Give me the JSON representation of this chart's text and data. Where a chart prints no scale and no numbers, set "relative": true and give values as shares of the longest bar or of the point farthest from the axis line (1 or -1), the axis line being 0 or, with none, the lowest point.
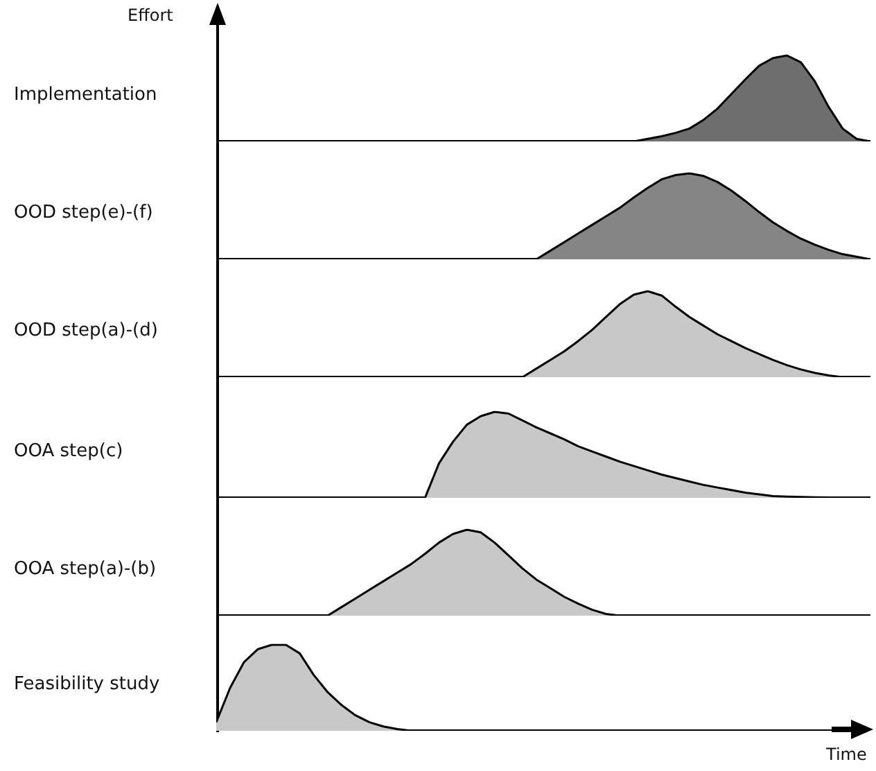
{
  "chart_data": [
    {
      "type": "area",
      "title": "Implementation",
      "ylabel": "Effort",
      "relative": true,
      "tick_labels": false,
      "legend": false,
      "categories": [
        null,
        null,
        null,
        null,
        null,
        null,
        null,
        null,
        null,
        null,
        null,
        null,
        null,
        null,
        null,
        null,
        null,
        null,
        null,
        null,
        null,
        null,
        null,
        null,
        null,
        null,
        null,
        null,
        null,
        null,
        null,
        null,
        null,
        null,
        null,
        null,
        null,
        null,
        null,
        null,
        null,
        null,
        null,
        null,
        null,
        null,
        null,
        null
      ],
      "series": [
        {
          "color": "#6e6e6e",
          "values": [
            null,
            null,
            null,
            null,
            null,
            null,
            null,
            null,
            null,
            null,
            null,
            null,
            null,
            null,
            null,
            null,
            null,
            null,
            null,
            null,
            null,
            null,
            null,
            null,
            null,
            null,
            null,
            null,
            null,
            null,
            0,
            0.03,
            0.06,
            0.1,
            0.15,
            0.25,
            0.38,
            0.55,
            0.72,
            0.88,
            0.97,
            1,
            0.92,
            0.7,
            0.4,
            0.15,
            0.03,
            0
          ]
        }
      ]
    },
    {
      "type": "area",
      "title": "OOD step(e)-(f)",
      "relative": true,
      "tick_labels": false,
      "legend": false,
      "categories": [
        null,
        null,
        null,
        null,
        null,
        null,
        null,
        null,
        null,
        null,
        null,
        null,
        null,
        null,
        null,
        null,
        null,
        null,
        null,
        null,
        null,
        null,
        null,
        null,
        null,
        null,
        null,
        null,
        null,
        null,
        null,
        null,
        null,
        null,
        null,
        null,
        null,
        null,
        null,
        null,
        null,
        null,
        null,
        null,
        null,
        null,
        null,
        null
      ],
      "series": [
        {
          "color": "#858585",
          "values": [
            null,
            null,
            null,
            null,
            null,
            null,
            null,
            null,
            null,
            null,
            null,
            null,
            null,
            null,
            null,
            null,
            null,
            null,
            null,
            null,
            null,
            null,
            null,
            0,
            0.1,
            0.2,
            0.3,
            0.4,
            0.5,
            0.6,
            0.72,
            0.83,
            0.93,
            0.98,
            1,
            0.97,
            0.9,
            0.8,
            0.68,
            0.55,
            0.43,
            0.33,
            0.24,
            0.17,
            0.11,
            0.06,
            0.03,
            0
          ]
        }
      ]
    },
    {
      "type": "area",
      "title": "OOD step(a)-(d)",
      "relative": true,
      "tick_labels": false,
      "legend": false,
      "categories": [
        null,
        null,
        null,
        null,
        null,
        null,
        null,
        null,
        null,
        null,
        null,
        null,
        null,
        null,
        null,
        null,
        null,
        null,
        null,
        null,
        null,
        null,
        null,
        null,
        null,
        null,
        null,
        null,
        null,
        null,
        null,
        null,
        null,
        null,
        null,
        null,
        null,
        null,
        null,
        null,
        null,
        null,
        null,
        null,
        null,
        null,
        null,
        null
      ],
      "series": [
        {
          "color": "#c8c8c8",
          "values": [
            null,
            null,
            null,
            null,
            null,
            null,
            null,
            null,
            null,
            null,
            null,
            null,
            null,
            null,
            null,
            null,
            null,
            null,
            null,
            null,
            null,
            null,
            0,
            0.1,
            0.2,
            0.3,
            0.42,
            0.55,
            0.7,
            0.85,
            0.96,
            1,
            0.95,
            0.82,
            0.7,
            0.6,
            0.5,
            0.42,
            0.34,
            0.27,
            0.2,
            0.14,
            0.09,
            0.05,
            0.02,
            0,
            null,
            null
          ]
        }
      ]
    },
    {
      "type": "area",
      "title": "OOA step(c)",
      "relative": true,
      "tick_labels": false,
      "legend": false,
      "categories": [
        null,
        null,
        null,
        null,
        null,
        null,
        null,
        null,
        null,
        null,
        null,
        null,
        null,
        null,
        null,
        null,
        null,
        null,
        null,
        null,
        null,
        null,
        null,
        null,
        null,
        null,
        null,
        null,
        null,
        null,
        null,
        null,
        null,
        null,
        null,
        null,
        null,
        null,
        null,
        null,
        null,
        null,
        null,
        null,
        null,
        null,
        null,
        null
      ],
      "series": [
        {
          "color": "#c8c8c8",
          "values": [
            null,
            null,
            null,
            null,
            null,
            null,
            null,
            null,
            null,
            null,
            null,
            null,
            null,
            null,
            null,
            0,
            0.4,
            0.65,
            0.85,
            0.95,
            1,
            0.98,
            0.9,
            0.82,
            0.75,
            0.68,
            0.6,
            0.54,
            0.48,
            0.42,
            0.37,
            0.32,
            0.27,
            0.23,
            0.19,
            0.15,
            0.12,
            0.09,
            0.06,
            0.04,
            0.02,
            0.015,
            0.01,
            0.007,
            0.004,
            0.002,
            0,
            null
          ]
        }
      ]
    },
    {
      "type": "area",
      "title": "OOA step(a)-(b)",
      "relative": true,
      "tick_labels": false,
      "legend": false,
      "categories": [
        null,
        null,
        null,
        null,
        null,
        null,
        null,
        null,
        null,
        null,
        null,
        null,
        null,
        null,
        null,
        null,
        null,
        null,
        null,
        null,
        null,
        null,
        null,
        null,
        null,
        null,
        null,
        null,
        null,
        null,
        null,
        null,
        null,
        null,
        null,
        null,
        null,
        null,
        null,
        null,
        null,
        null,
        null,
        null,
        null,
        null,
        null,
        null
      ],
      "series": [
        {
          "color": "#c8c8c8",
          "values": [
            null,
            null,
            null,
            null,
            null,
            null,
            null,
            null,
            0,
            0.1,
            0.2,
            0.3,
            0.4,
            0.5,
            0.6,
            0.72,
            0.85,
            0.95,
            1,
            0.97,
            0.85,
            0.7,
            0.55,
            0.42,
            0.32,
            0.22,
            0.14,
            0.07,
            0.02,
            0,
            null,
            null,
            null,
            null,
            null,
            null,
            null,
            null,
            null,
            null,
            null,
            null,
            null,
            null,
            null,
            null,
            null,
            null
          ]
        }
      ]
    },
    {
      "type": "area",
      "title": "Feasibility study",
      "xlabel": "Time",
      "relative": true,
      "tick_labels": false,
      "legend": false,
      "categories": [
        null,
        null,
        null,
        null,
        null,
        null,
        null,
        null,
        null,
        null,
        null,
        null,
        null,
        null,
        null,
        null,
        null,
        null,
        null,
        null,
        null,
        null,
        null,
        null,
        null,
        null,
        null,
        null,
        null,
        null,
        null,
        null,
        null,
        null,
        null,
        null,
        null,
        null,
        null,
        null,
        null,
        null,
        null,
        null,
        null,
        null,
        null,
        null
      ],
      "series": [
        {
          "color": "#c8c8c8",
          "values": [
            0.1,
            0.5,
            0.8,
            0.95,
            1,
            1,
            0.9,
            0.65,
            0.45,
            0.3,
            0.18,
            0.1,
            0.05,
            0.02,
            0,
            null,
            null,
            null,
            null,
            null,
            null,
            null,
            null,
            null,
            null,
            null,
            null,
            null,
            null,
            null,
            null,
            null,
            null,
            null,
            null,
            null,
            null,
            null,
            null,
            null,
            null,
            null,
            null,
            null,
            null,
            null,
            null,
            null
          ]
        }
      ]
    }
  ]
}
